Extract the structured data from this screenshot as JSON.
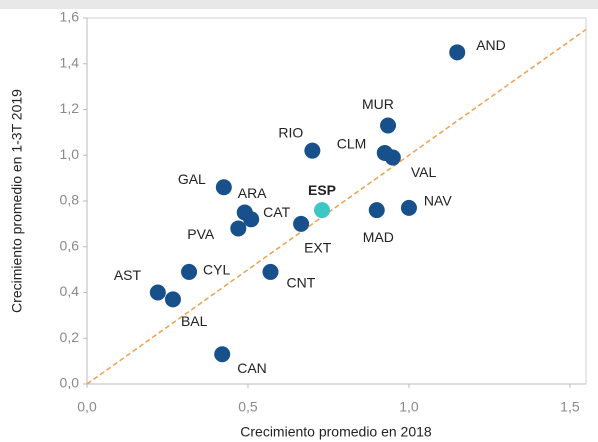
{
  "chart_data": {
    "type": "scatter",
    "x_label": "Crecimiento promedio  en 2018",
    "y_label": "Crecimiento promedio  en 1-3T 2019",
    "labels": [
      "AND",
      "MUR",
      "RIO",
      "CLM",
      "VAL",
      "GAL",
      "ARA",
      "CAT",
      "ESP",
      "EXT",
      "PVA",
      "MAD",
      "NAV",
      "CYL",
      "CNT",
      "AST",
      "BAL",
      "CAN"
    ],
    "x": [
      1.15,
      0.935,
      0.7,
      0.925,
      0.95,
      0.425,
      0.49,
      0.51,
      0.73,
      0.665,
      0.47,
      0.9,
      1.0,
      0.317,
      0.57,
      0.22,
      0.267,
      0.42
    ],
    "values": [
      1.45,
      1.13,
      1.02,
      1.01,
      0.99,
      0.86,
      0.75,
      0.72,
      0.76,
      0.7,
      0.68,
      0.76,
      0.77,
      0.49,
      0.49,
      0.4,
      0.37,
      0.13
    ],
    "colors": [
      "#17508a",
      "#17508a",
      "#17508a",
      "#17508a",
      "#17508a",
      "#17508a",
      "#17508a",
      "#17508a",
      "#3ec6c4",
      "#17508a",
      "#17508a",
      "#17508a",
      "#17508a",
      "#17508a",
      "#17508a",
      "#17508a",
      "#17508a",
      "#17508a"
    ],
    "bold_labels": [
      false,
      false,
      false,
      false,
      false,
      false,
      false,
      false,
      true,
      false,
      false,
      false,
      false,
      false,
      false,
      false,
      false,
      false
    ],
    "diagonal_color": "#f0a050",
    "xlim": [
      0,
      1.55
    ],
    "ylim": [
      0,
      1.6
    ],
    "xticks": [
      {
        "value": 0,
        "label": "0,0"
      },
      {
        "value": 0.5,
        "label": "0,5"
      },
      {
        "value": 1,
        "label": "1,0"
      },
      {
        "value": 1.5,
        "label": "1,5"
      }
    ],
    "yticks": [
      {
        "value": 0,
        "label": "0,0"
      },
      {
        "value": 0.2,
        "label": "0,2"
      },
      {
        "value": 0.4,
        "label": "0,4"
      },
      {
        "value": 0.6,
        "label": "0,6"
      },
      {
        "value": 0.8,
        "label": "0,8"
      },
      {
        "value": 1,
        "label": "1,0"
      },
      {
        "value": 1.2,
        "label": "1,2"
      },
      {
        "value": 1.4,
        "label": "1,4"
      },
      {
        "value": 1.6,
        "label": "1,6"
      }
    ]
  }
}
